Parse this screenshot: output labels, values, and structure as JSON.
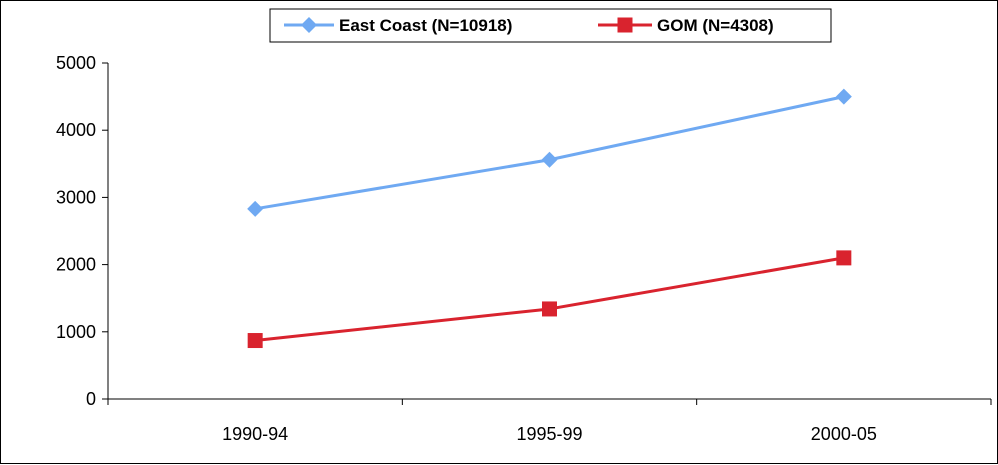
{
  "chart_data": {
    "type": "line",
    "categories": [
      "1990-94",
      "1995-99",
      "2000-05"
    ],
    "series": [
      {
        "name": "East Coast (N=10918)",
        "values": [
          2830,
          3560,
          4500
        ],
        "color": "#6fa9f2",
        "marker": "diamond"
      },
      {
        "name": "GOM (N=4308)",
        "values": [
          870,
          1340,
          2100
        ],
        "color": "#d9232e",
        "marker": "square"
      }
    ],
    "ylim": [
      0,
      5000
    ],
    "yticks": [
      0,
      1000,
      2000,
      3000,
      4000,
      5000
    ],
    "grid": false,
    "legend_position": "top-center"
  }
}
